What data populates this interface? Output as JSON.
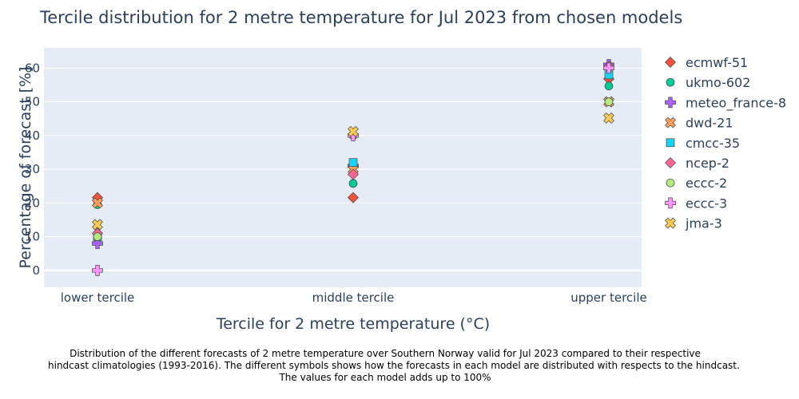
{
  "chart_data": {
    "type": "scatter",
    "title": "Tercile distribution for 2 metre temperature for Jul 2023 from chosen models",
    "xlabel": "Tercile for 2 metre temperature (°C)",
    "ylabel": "Percentage of forecast [%]",
    "categories": [
      "lower tercile",
      "middle tercile",
      "upper tercile"
    ],
    "ylim": [
      -5,
      66
    ],
    "yticks": [
      0,
      10,
      20,
      30,
      40,
      50,
      60
    ],
    "grid": true,
    "legend_position": "right",
    "series": [
      {
        "name": "ecmwf-51",
        "symbol": "diamond",
        "color": "#EF553B",
        "values": [
          21.6,
          21.6,
          56.8
        ]
      },
      {
        "name": "ukmo-602",
        "symbol": "circle",
        "color": "#00CC96",
        "values": [
          19.5,
          25.8,
          54.7
        ]
      },
      {
        "name": "meteo_france-8",
        "symbol": "cross",
        "color": "#AB63FA",
        "values": [
          8.0,
          31.0,
          61.0
        ]
      },
      {
        "name": "dwd-21",
        "symbol": "x",
        "color": "#FFA15A",
        "values": [
          20.0,
          30.0,
          50.0
        ]
      },
      {
        "name": "cmcc-35",
        "symbol": "square",
        "color": "#19D3F3",
        "values": [
          10.0,
          32.0,
          58.0
        ]
      },
      {
        "name": "ncep-2",
        "symbol": "diamond",
        "color": "#FF6692",
        "values": [
          11.0,
          28.5,
          60.5
        ]
      },
      {
        "name": "eccc-2",
        "symbol": "circle",
        "color": "#B6E880",
        "values": [
          10.0,
          40.0,
          50.0
        ]
      },
      {
        "name": "eccc-3",
        "symbol": "cross",
        "color": "#FF97FF",
        "values": [
          0.0,
          40.0,
          60.0
        ]
      },
      {
        "name": "jma-3",
        "symbol": "x",
        "color": "#FECB52",
        "values": [
          13.6,
          41.2,
          45.2
        ]
      }
    ]
  },
  "caption": {
    "lines": [
      "Distribution of the different forecasts of 2 metre temperature over Southern Norway valid for Jul 2023 compared to their respective",
      "hindcast climatologies (1993-2016). The different symbols shows how the forecasts in each model are distributed with respects to the hindcast.",
      "The values for each model adds up to 100%"
    ]
  }
}
